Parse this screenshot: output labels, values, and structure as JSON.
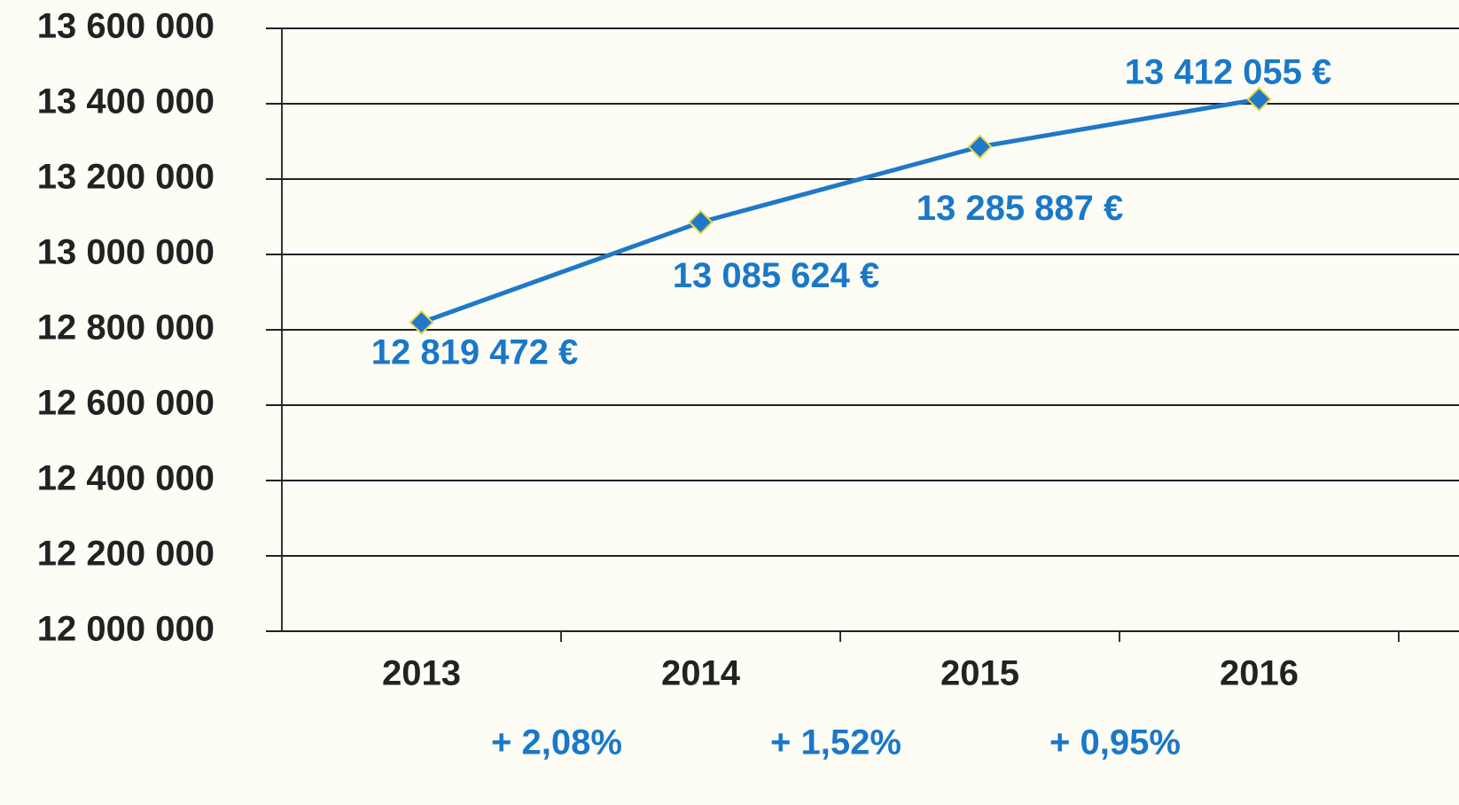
{
  "chart_data": {
    "type": "line",
    "categories": [
      "2013",
      "2014",
      "2015",
      "2016"
    ],
    "series": [
      {
        "color": "#1f78c8",
        "values": [
          12819472,
          13085624,
          13285887,
          13412055
        ],
        "value_labels": [
          "12 819 472 €",
          "13 085 624 €",
          "13 285 887 €",
          "13 412 055 €"
        ]
      }
    ],
    "ylim": [
      12000000,
      13600000
    ],
    "yticks": [
      {
        "value": 12000000,
        "label": "12 000 000"
      },
      {
        "value": 12200000,
        "label": "12 200 000"
      },
      {
        "value": 12400000,
        "label": "12 400 000"
      },
      {
        "value": 12600000,
        "label": "12 600 000"
      },
      {
        "value": 12800000,
        "label": "12 800 000"
      },
      {
        "value": 13000000,
        "label": "13 000 000"
      },
      {
        "value": 13200000,
        "label": "13 200 000"
      },
      {
        "value": 13400000,
        "label": "13 400 000"
      },
      {
        "value": 13600000,
        "label": "13 600 000"
      }
    ],
    "grid": true,
    "annotations": [
      "+ 2,08%",
      "+ 1,52%",
      "+ 0,95%"
    ]
  }
}
